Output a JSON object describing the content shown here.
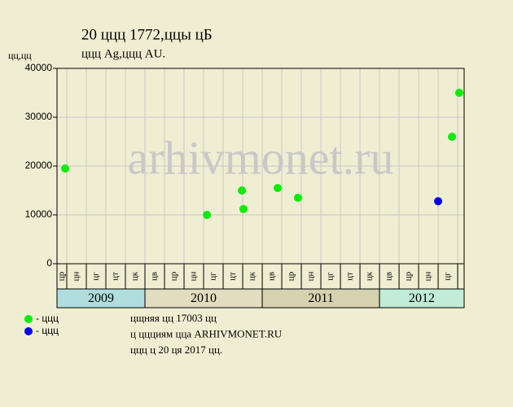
{
  "chart_data": {
    "type": "scatter",
    "title": "20 ццц 1772,ццы цБ",
    "subtitle": "ццц Ag,ццц AU.",
    "y_label": "цц,цц",
    "watermark": "arhivmonet.ru",
    "x_groups": [
      {
        "label": "2009",
        "color": "#b0dede",
        "categories": [
          "цр",
          "цн",
          "цг",
          "цт",
          "цк"
        ]
      },
      {
        "label": "2010",
        "color": "#e2dcc0",
        "categories": [
          "цв",
          "цр",
          "цн",
          "цг",
          "цт",
          "цк"
        ]
      },
      {
        "label": "2011",
        "color": "#d6d2b0",
        "categories": [
          "цв",
          "цр",
          "цн",
          "цг",
          "цт",
          "цк"
        ]
      },
      {
        "label": "2012",
        "color": "#c0ecd8",
        "categories": [
          "цв",
          "цр",
          "цн",
          "цг"
        ]
      }
    ],
    "xlim": [
      0,
      20.83
    ],
    "ylim": [
      0,
      40000
    ],
    "yticks": [
      0,
      10000,
      20000,
      30000,
      40000
    ],
    "grid": true,
    "series": [
      {
        "name": "- ццц",
        "color": "#00ee00",
        "x": [
          0.42,
          7.67,
          9.46,
          9.54,
          11.29,
          12.33,
          20.21,
          20.58
        ],
        "values": [
          19500,
          10000,
          15000,
          11200,
          15500,
          13500,
          26000,
          35000
        ]
      },
      {
        "name": "- ццц",
        "color": "#0000ee",
        "x": [
          19.5
        ],
        "values": [
          12800
        ]
      }
    ],
    "notes": [
      "цщняя цц 17003 цц",
      "ц ццциям цца ARHIVMONET.RU",
      "ццц ц 20 ця 2017 цц."
    ]
  }
}
